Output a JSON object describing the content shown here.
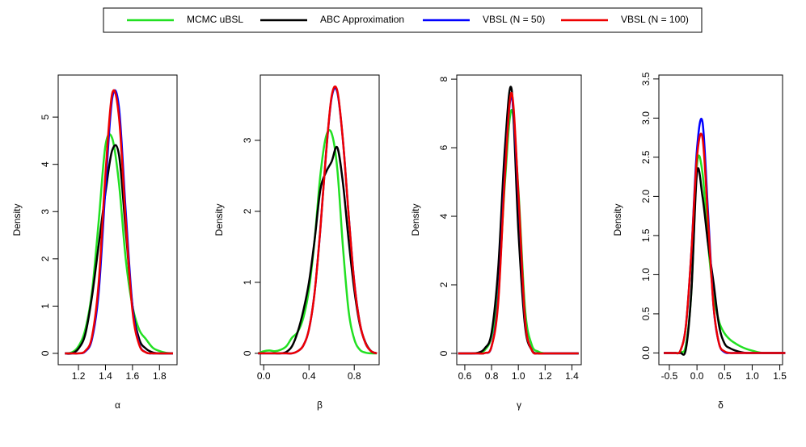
{
  "chart_data": [
    {
      "type": "line",
      "x_label": "α",
      "y_label": "Density",
      "xlim": [
        1.05,
        1.93
      ],
      "ylim": [
        -0.24,
        5.89
      ],
      "xticks": [
        1.2,
        1.4,
        1.6,
        1.8
      ],
      "yticks": [
        0,
        1,
        2,
        3,
        4,
        5
      ],
      "x": [
        1.1,
        1.15,
        1.2,
        1.25,
        1.3,
        1.35,
        1.4,
        1.45,
        1.5,
        1.55,
        1.6,
        1.65,
        1.7,
        1.75,
        1.8,
        1.85,
        1.9
      ],
      "series": [
        {
          "name": "MCMC uBSL",
          "color": "#22e022",
          "values": [
            0,
            0.02,
            0.15,
            0.5,
            1.3,
            2.8,
            4.4,
            4.55,
            3.6,
            2.0,
            1.0,
            0.5,
            0.3,
            0.12,
            0.05,
            0.01,
            0
          ]
        },
        {
          "name": "ABC Approximation",
          "color": "#000000",
          "values": [
            0,
            0,
            0.1,
            0.4,
            1.2,
            2.3,
            3.4,
            4.3,
            4.2,
            2.6,
            1.0,
            0.3,
            0.1,
            0.02,
            0,
            0,
            0
          ]
        },
        {
          "name": "VBSL (N = 50)",
          "color": "#0000ff",
          "values": [
            0,
            0,
            0,
            0.04,
            0.3,
            1.3,
            3.5,
            5.4,
            5.2,
            3.0,
            1.0,
            0.2,
            0.02,
            0,
            0,
            0,
            0
          ]
        },
        {
          "name": "VBSL (N = 100)",
          "color": "#ee0000",
          "values": [
            0,
            0,
            0,
            0.05,
            0.35,
            1.5,
            3.8,
            5.5,
            5.0,
            2.8,
            0.9,
            0.18,
            0.02,
            0,
            0,
            0,
            0
          ]
        }
      ]
    },
    {
      "type": "line",
      "x_label": "β",
      "y_label": "Density",
      "xlim": [
        -0.03,
        1.02
      ],
      "ylim": [
        -0.16,
        3.92
      ],
      "xticks": [
        {
          "value": 0,
          "label": "0.0"
        },
        0.4,
        0.8
      ],
      "yticks": [
        0,
        1,
        2,
        3
      ],
      "x": [
        -0.05,
        0,
        0.05,
        0.1,
        0.15,
        0.2,
        0.25,
        0.3,
        0.35,
        0.4,
        0.45,
        0.5,
        0.55,
        0.6,
        0.65,
        0.7,
        0.75,
        0.8,
        0.85,
        0.9,
        0.95,
        1.0
      ],
      "series": [
        {
          "name": "MCMC uBSL",
          "color": "#22e022",
          "values": [
            0,
            0.03,
            0.04,
            0.03,
            0.05,
            0.1,
            0.22,
            0.3,
            0.5,
            0.9,
            1.6,
            2.5,
            3.05,
            3.1,
            2.6,
            1.5,
            0.6,
            0.2,
            0.05,
            0.01,
            0,
            0
          ]
        },
        {
          "name": "ABC Approximation",
          "color": "#000000",
          "values": [
            0,
            0,
            0,
            0,
            0,
            0.02,
            0.1,
            0.3,
            0.6,
            1.0,
            1.6,
            2.3,
            2.55,
            2.7,
            2.9,
            2.4,
            1.6,
            0.9,
            0.4,
            0.15,
            0.03,
            0
          ]
        },
        {
          "name": "VBSL (N = 50)",
          "color": "#0000ff",
          "values": [
            0,
            0,
            0,
            0,
            0,
            0,
            0,
            0.03,
            0.11,
            0.34,
            0.86,
            1.74,
            2.8,
            3.6,
            3.68,
            3.0,
            1.96,
            1.01,
            0.42,
            0.14,
            0.03,
            0
          ]
        },
        {
          "name": "VBSL (N = 100)",
          "color": "#ee0000",
          "values": [
            0,
            0,
            0,
            0,
            0,
            0,
            0,
            0.03,
            0.11,
            0.34,
            0.86,
            1.74,
            2.8,
            3.62,
            3.7,
            3.0,
            1.96,
            1.0,
            0.42,
            0.14,
            0.03,
            0
          ]
        }
      ]
    },
    {
      "type": "line",
      "x_label": "γ",
      "y_label": "Density",
      "xlim": [
        0.54,
        1.47
      ],
      "ylim": [
        -0.33,
        8.12
      ],
      "xticks": [
        0.6,
        0.8,
        {
          "value": 1,
          "label": "1.0"
        },
        1.2,
        1.4
      ],
      "yticks": [
        0,
        2,
        4,
        6,
        8
      ],
      "x": [
        0.55,
        0.6,
        0.65,
        0.7,
        0.75,
        0.8,
        0.85,
        0.9,
        0.95,
        1.0,
        1.05,
        1.1,
        1.15,
        1.2,
        1.25,
        1.3,
        1.35,
        1.4,
        1.45
      ],
      "series": [
        {
          "name": "MCMC uBSL",
          "color": "#22e022",
          "values": [
            0,
            0,
            0,
            0.02,
            0.1,
            0.5,
            1.8,
            5.0,
            7.1,
            4.8,
            1.3,
            0.25,
            0.05,
            0,
            0,
            0,
            0,
            0,
            0
          ]
        },
        {
          "name": "ABC Approximation",
          "color": "#000000",
          "values": [
            0,
            0,
            0,
            0.02,
            0.15,
            0.6,
            2.5,
            6.0,
            7.7,
            3.6,
            0.8,
            0.1,
            0,
            0,
            0,
            0,
            0,
            0,
            0
          ]
        },
        {
          "name": "VBSL (N = 50)",
          "color": "#0000ff",
          "values": [
            0,
            0,
            0,
            0,
            0.01,
            0.2,
            1.6,
            5.3,
            7.5,
            4.6,
            1.0,
            0.1,
            0,
            0,
            0,
            0,
            0,
            0,
            0
          ]
        },
        {
          "name": "VBSL (N = 100)",
          "color": "#ee0000",
          "values": [
            0,
            0,
            0,
            0,
            0.01,
            0.2,
            1.5,
            5.2,
            7.6,
            4.7,
            1.0,
            0.1,
            0,
            0,
            0,
            0,
            0,
            0,
            0
          ]
        }
      ]
    },
    {
      "type": "line",
      "x_label": "δ",
      "y_label": "Density",
      "xlim": [
        -0.69,
        1.55
      ],
      "ylim": [
        -0.15,
        3.55
      ],
      "xticks": [
        -0.5,
        {
          "value": 0,
          "label": "0.0"
        },
        0.5,
        {
          "value": 1,
          "label": "1.0"
        },
        1.5
      ],
      "yticks": [
        {
          "value": 0,
          "label": "0.0"
        },
        0.5,
        {
          "value": 1,
          "label": "1.0"
        },
        1.5,
        {
          "value": 2,
          "label": "2.0"
        },
        2.5,
        {
          "value": 3,
          "label": "3.0"
        },
        3.5
      ],
      "x": [
        -0.6,
        -0.5,
        -0.4,
        -0.3,
        -0.2,
        -0.1,
        0,
        0.1,
        0.2,
        0.3,
        0.4,
        0.5,
        0.6,
        0.7,
        0.8,
        0.9,
        1.0,
        1.1,
        1.2,
        1.3,
        1.4,
        1.5,
        1.6
      ],
      "series": [
        {
          "name": "MCMC uBSL",
          "color": "#22e022",
          "values": [
            0,
            0,
            0,
            0.01,
            0.1,
            0.8,
            2.4,
            2.3,
            1.4,
            0.75,
            0.4,
            0.25,
            0.17,
            0.12,
            0.08,
            0.05,
            0.03,
            0.01,
            0,
            0,
            0,
            0,
            0
          ]
        },
        {
          "name": "ABC Approximation",
          "color": "#000000",
          "values": [
            0,
            0,
            0,
            0,
            0.05,
            0.8,
            2.3,
            2.0,
            1.4,
            0.9,
            0.35,
            0.12,
            0.06,
            0.03,
            0.01,
            0,
            0,
            0,
            0,
            0,
            0,
            0,
            0
          ]
        },
        {
          "name": "VBSL (N = 50)",
          "color": "#0000ff",
          "values": [
            0,
            0,
            0,
            0.03,
            0.35,
            1.3,
            2.6,
            2.95,
            1.8,
            0.6,
            0.12,
            0.01,
            0,
            0,
            0,
            0,
            0,
            0,
            0,
            0,
            0,
            0,
            0
          ]
        },
        {
          "name": "VBSL (N = 100)",
          "color": "#ee0000",
          "values": [
            0,
            0,
            0,
            0.03,
            0.35,
            1.3,
            2.5,
            2.75,
            1.7,
            0.6,
            0.12,
            0.02,
            0,
            0,
            0,
            0,
            0,
            0,
            0,
            0,
            0,
            0,
            0
          ]
        }
      ]
    }
  ]
}
